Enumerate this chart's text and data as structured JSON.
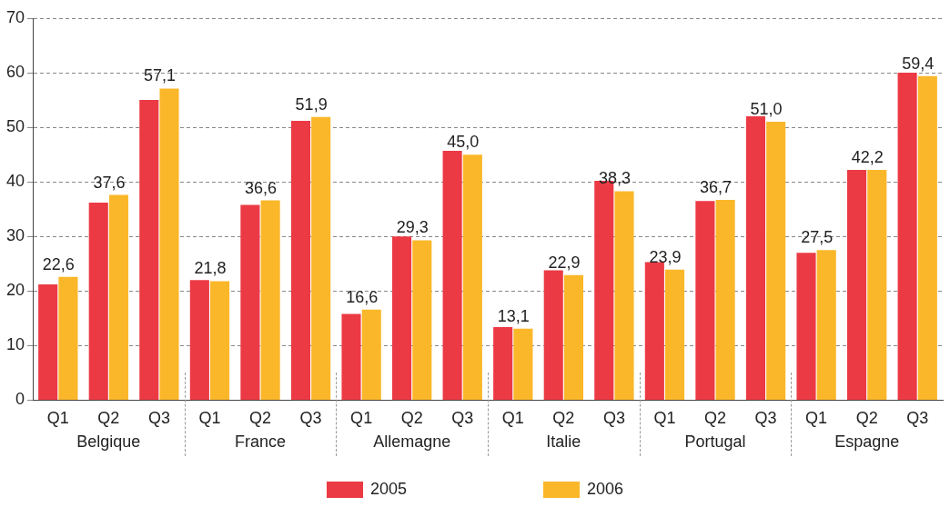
{
  "chart_data": {
    "type": "bar",
    "categories": [
      "Q1",
      "Q2",
      "Q3",
      "Q1",
      "Q2",
      "Q3",
      "Q1",
      "Q2",
      "Q3",
      "Q1",
      "Q2",
      "Q3",
      "Q1",
      "Q2",
      "Q3",
      "Q1",
      "Q2",
      "Q3"
    ],
    "series": [
      {
        "name": "2005",
        "color": "#ec3a44",
        "values": [
          21.2,
          36.2,
          55.0,
          22.0,
          35.8,
          51.2,
          15.8,
          30.0,
          45.7,
          13.4,
          23.8,
          40.2,
          25.3,
          36.5,
          52.0,
          27.0,
          42.2,
          60.0
        ]
      },
      {
        "name": "2006",
        "color": "#fbb72a",
        "values": [
          22.6,
          37.6,
          57.1,
          21.8,
          36.6,
          51.9,
          16.6,
          29.3,
          45.0,
          13.1,
          22.9,
          38.3,
          23.9,
          36.7,
          51.0,
          27.5,
          42.2,
          59.4
        ],
        "value_labels": [
          "22,6",
          "37,6",
          "57,1",
          "21,8",
          "36,6",
          "51,9",
          "16,6",
          "29,3",
          "45,0",
          "13,1",
          "22,9",
          "38,3",
          "23,9",
          "36,7",
          "51,0",
          "27,5",
          "42,2",
          "59,4"
        ]
      }
    ],
    "annotations": [
      "Belgique",
      "France",
      "Allemagne",
      "Italie",
      "Portugal",
      "Espagne"
    ],
    "ylim": [
      0,
      70
    ],
    "yticks": [
      0,
      10,
      20,
      30,
      40,
      50,
      60,
      70
    ],
    "grid": "y",
    "legend": "bottom"
  }
}
